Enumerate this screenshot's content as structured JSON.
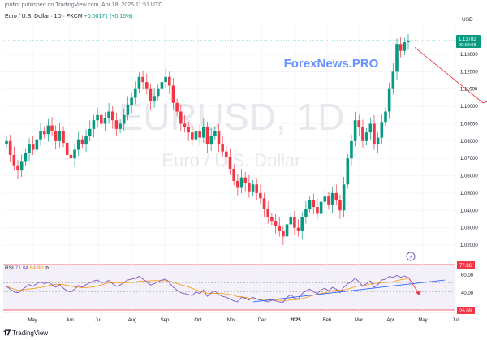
{
  "header": {
    "published": "jonfint published on TradingView.com, Apr 18, 2025 11:51 UTC",
    "symbol": "Euro / U.S. Dollar · 1D · FXCM",
    "change": "+0.00171 (+0.15%)"
  },
  "watermark": {
    "ticker": "EURUSD, 1D",
    "name": "Euro / U.S. Dollar",
    "brand": "ForexNews.PRO"
  },
  "price_axis": {
    "currency": "USD",
    "last_price": "1.13782",
    "countdown": "09:08:08"
  },
  "rsi": {
    "label": "RSI",
    "value": "71.04",
    "secondary": "64.90",
    "badge_upper": "77.86",
    "badge_lower": "26.09",
    "levels": [
      "60.00",
      "40.00"
    ]
  },
  "footer": {
    "brand": "TradingView"
  },
  "colors": {
    "up": "#089981",
    "down": "#f23645",
    "rsi_line": "#7e57c2",
    "rsi_ma": "#ff9800",
    "trendline": "#2962ff",
    "forecast": "#f23645",
    "watermark_brand": "#2962ff"
  },
  "chart_data": {
    "type": "candlestick",
    "y_axis_ticks": [
      "1.13000",
      "1.12000",
      "1.11000",
      "1.10000",
      "1.09000",
      "1.08000",
      "1.07000",
      "1.06000",
      "1.05000",
      "1.04000",
      "1.03000",
      "1.02000"
    ],
    "ylim": [
      1.015,
      1.145
    ],
    "x_axis_labels": [
      "May",
      "Jun",
      "Jul",
      "Aug",
      "Sep",
      "Oct",
      "Nov",
      "Dec",
      "2025",
      "Feb",
      "Mar",
      "Apr",
      "May",
      "Jul"
    ],
    "closes": [
      1.08,
      1.072,
      1.066,
      1.063,
      1.068,
      1.073,
      1.078,
      1.075,
      1.081,
      1.086,
      1.084,
      1.089,
      1.086,
      1.08,
      1.086,
      1.079,
      1.072,
      1.07,
      1.075,
      1.081,
      1.078,
      1.083,
      1.087,
      1.092,
      1.095,
      1.09,
      1.093,
      1.097,
      1.092,
      1.087,
      1.09,
      1.095,
      1.101,
      1.105,
      1.11,
      1.117,
      1.114,
      1.11,
      1.103,
      1.106,
      1.11,
      1.114,
      1.117,
      1.112,
      1.102,
      1.097,
      1.09,
      1.088,
      1.085,
      1.081,
      1.086,
      1.082,
      1.088,
      1.078,
      1.083,
      1.086,
      1.078,
      1.074,
      1.071,
      1.064,
      1.057,
      1.053,
      1.059,
      1.056,
      1.051,
      1.055,
      1.05,
      1.047,
      1.041,
      1.036,
      1.034,
      1.031,
      1.028,
      1.025,
      1.032,
      1.036,
      1.03,
      1.028,
      1.036,
      1.041,
      1.046,
      1.042,
      1.038,
      1.045,
      1.048,
      1.043,
      1.05,
      1.046,
      1.04,
      1.055,
      1.07,
      1.08,
      1.092,
      1.088,
      1.08,
      1.085,
      1.09,
      1.078,
      1.082,
      1.091,
      1.097,
      1.11,
      1.12,
      1.136,
      1.132,
      1.137,
      1.138
    ],
    "forecast_path": [
      [
        1.134,
        0
      ],
      [
        1.102,
        18
      ],
      [
        1.115,
        33
      ]
    ],
    "rsi_values": [
      52,
      46,
      40,
      38,
      44,
      50,
      56,
      52,
      58,
      62,
      58,
      61,
      56,
      50,
      56,
      48,
      42,
      40,
      46,
      54,
      50,
      56,
      60,
      64,
      66,
      60,
      62,
      65,
      58,
      52,
      55,
      61,
      66,
      68,
      70,
      74,
      68,
      62,
      55,
      58,
      62,
      66,
      68,
      60,
      50,
      44,
      38,
      36,
      34,
      32,
      40,
      36,
      44,
      30,
      38,
      42,
      34,
      30,
      28,
      24,
      20,
      18,
      28,
      26,
      22,
      28,
      24,
      22,
      20,
      18,
      22,
      20,
      18,
      17,
      28,
      34,
      26,
      24,
      36,
      42,
      46,
      40,
      36,
      44,
      48,
      42,
      50,
      46,
      38,
      50,
      58,
      62,
      70,
      62,
      52,
      58,
      64,
      50,
      56,
      66,
      68,
      74,
      72,
      76,
      72,
      75,
      71
    ],
    "rsi_trendline": [
      [
        18,
        0
      ],
      [
        66,
        1
      ]
    ],
    "rsi_ylim": [
      0,
      100
    ]
  }
}
